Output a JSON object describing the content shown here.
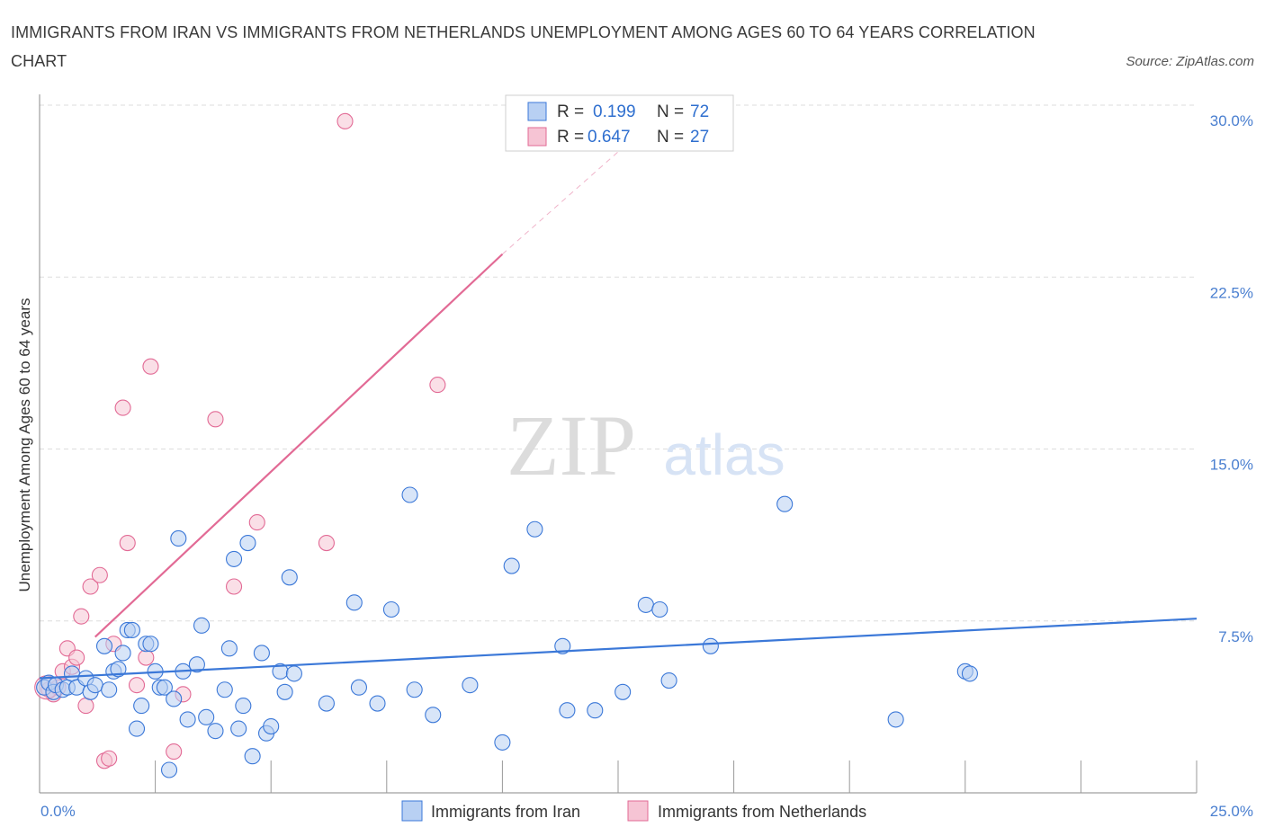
{
  "header": {
    "title": "IMMIGRANTS FROM IRAN VS IMMIGRANTS FROM NETHERLANDS UNEMPLOYMENT AMONG AGES 60 TO 64 YEARS CORRELATION CHART",
    "source": "Source: ZipAtlas.com"
  },
  "watermark": {
    "zip": "ZIP",
    "atlas": "atlas"
  },
  "legend": {
    "series1": {
      "r_label": "R =",
      "r_value": "0.199",
      "n_label": "N =",
      "n_value": "72"
    },
    "series2": {
      "r_label": "R =",
      "r_value": "0.647",
      "n_label": "N =",
      "n_value": "27"
    }
  },
  "bottom_legend": {
    "series1": "Immigrants from Iran",
    "series2": "Immigrants from Netherlands"
  },
  "chart_data": {
    "type": "scatter",
    "title": "IMMIGRANTS FROM IRAN VS IMMIGRANTS FROM NETHERLANDS UNEMPLOYMENT AMONG AGES 60 TO 64 YEARS CORRELATION CHART",
    "xlabel": "",
    "ylabel": "Unemployment Among Ages 60 to 64 years",
    "xlim": [
      0,
      25
    ],
    "ylim": [
      0,
      30
    ],
    "x_tick_labels": [
      "0.0%",
      "25.0%"
    ],
    "y_ticks": [
      7.5,
      15,
      22.5,
      30
    ],
    "y_tick_labels": [
      "7.5%",
      "15.0%",
      "22.5%",
      "30.0%"
    ],
    "grid": true,
    "colors": {
      "series1": "#3b78d8",
      "series1_fill": "#b8d0f3",
      "series2": "#e26a95",
      "series2_fill": "#f6c4d4"
    },
    "series": [
      {
        "name": "Immigrants from Iran",
        "R": 0.199,
        "N": 72,
        "trend": {
          "x": [
            0,
            25
          ],
          "y": [
            5.0,
            7.6
          ]
        },
        "points": [
          [
            0.1,
            4.6
          ],
          [
            0.2,
            4.8
          ],
          [
            0.3,
            4.4
          ],
          [
            0.35,
            4.7
          ],
          [
            0.5,
            4.5
          ],
          [
            0.6,
            4.6
          ],
          [
            0.7,
            5.2
          ],
          [
            0.8,
            4.6
          ],
          [
            1.0,
            5.0
          ],
          [
            1.1,
            4.4
          ],
          [
            1.2,
            4.7
          ],
          [
            1.4,
            6.4
          ],
          [
            1.5,
            4.5
          ],
          [
            1.6,
            5.3
          ],
          [
            1.7,
            5.4
          ],
          [
            1.8,
            6.1
          ],
          [
            1.9,
            7.1
          ],
          [
            2.0,
            7.1
          ],
          [
            2.1,
            2.8
          ],
          [
            2.2,
            3.8
          ],
          [
            2.3,
            6.5
          ],
          [
            2.4,
            6.5
          ],
          [
            2.5,
            5.3
          ],
          [
            2.6,
            4.6
          ],
          [
            2.7,
            4.6
          ],
          [
            2.8,
            1.0
          ],
          [
            2.9,
            4.1
          ],
          [
            3.0,
            11.1
          ],
          [
            3.1,
            5.3
          ],
          [
            3.2,
            3.2
          ],
          [
            3.4,
            5.6
          ],
          [
            3.5,
            7.3
          ],
          [
            3.6,
            3.3
          ],
          [
            3.8,
            2.7
          ],
          [
            4.0,
            4.5
          ],
          [
            4.1,
            6.3
          ],
          [
            4.2,
            10.2
          ],
          [
            4.3,
            2.8
          ],
          [
            4.4,
            3.8
          ],
          [
            4.5,
            10.9
          ],
          [
            4.6,
            1.6
          ],
          [
            4.8,
            6.1
          ],
          [
            4.9,
            2.6
          ],
          [
            5.0,
            2.9
          ],
          [
            5.2,
            5.3
          ],
          [
            5.3,
            4.4
          ],
          [
            5.4,
            9.4
          ],
          [
            5.5,
            5.2
          ],
          [
            6.2,
            3.9
          ],
          [
            6.8,
            8.3
          ],
          [
            6.9,
            4.6
          ],
          [
            7.3,
            3.9
          ],
          [
            7.6,
            8.0
          ],
          [
            8.0,
            13.0
          ],
          [
            8.1,
            4.5
          ],
          [
            8.5,
            3.4
          ],
          [
            9.3,
            4.7
          ],
          [
            10.0,
            2.2
          ],
          [
            10.2,
            9.9
          ],
          [
            10.7,
            11.5
          ],
          [
            11.3,
            6.4
          ],
          [
            11.4,
            3.6
          ],
          [
            12.0,
            3.6
          ],
          [
            12.6,
            4.4
          ],
          [
            13.1,
            8.2
          ],
          [
            13.4,
            8.0
          ],
          [
            13.6,
            4.9
          ],
          [
            14.5,
            6.4
          ],
          [
            16.1,
            12.6
          ],
          [
            18.5,
            3.2
          ],
          [
            20.0,
            5.3
          ],
          [
            20.1,
            5.2
          ]
        ]
      },
      {
        "name": "Immigrants from Netherlands",
        "R": 0.647,
        "N": 27,
        "trend": {
          "x": [
            1.2,
            10.0
          ],
          "y": [
            6.8,
            23.5
          ]
        },
        "trend_dashed": {
          "x": [
            10.0,
            12.8
          ],
          "y": [
            23.5,
            28.5
          ]
        },
        "points": [
          [
            0.2,
            4.5
          ],
          [
            0.3,
            4.3
          ],
          [
            0.4,
            4.6
          ],
          [
            0.5,
            5.3
          ],
          [
            0.6,
            6.3
          ],
          [
            0.7,
            5.5
          ],
          [
            0.8,
            5.9
          ],
          [
            0.9,
            7.7
          ],
          [
            1.0,
            3.8
          ],
          [
            1.1,
            9.0
          ],
          [
            1.3,
            9.5
          ],
          [
            1.4,
            1.4
          ],
          [
            1.5,
            1.5
          ],
          [
            1.6,
            6.5
          ],
          [
            1.8,
            16.8
          ],
          [
            1.9,
            10.9
          ],
          [
            2.1,
            4.7
          ],
          [
            2.3,
            5.9
          ],
          [
            2.4,
            18.6
          ],
          [
            2.9,
            1.8
          ],
          [
            3.1,
            4.3
          ],
          [
            3.8,
            16.3
          ],
          [
            4.2,
            9.0
          ],
          [
            4.7,
            11.8
          ],
          [
            6.2,
            10.9
          ],
          [
            6.6,
            29.3
          ],
          [
            8.6,
            17.8
          ]
        ]
      }
    ]
  }
}
